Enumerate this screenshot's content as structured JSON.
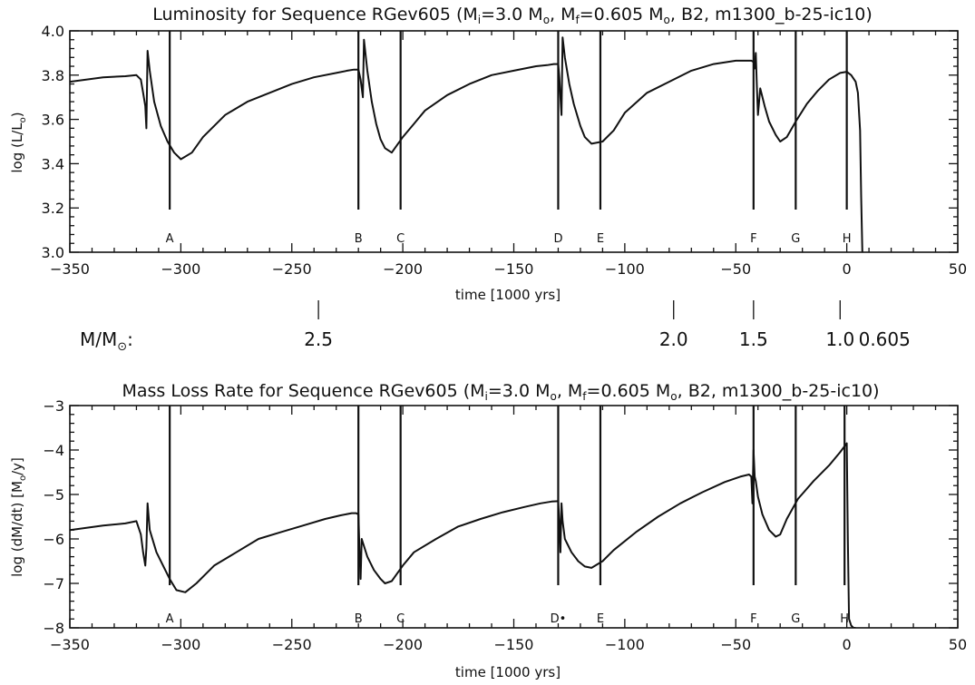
{
  "chart_data": [
    {
      "type": "line",
      "title": "Luminosity for Sequence RGev605 (M_i=3.0 M_o, M_f=0.605 M_o, B2, m1300_b-25-ic10)",
      "xlabel": "time [1000 yrs]",
      "ylabel": "log (L/L_o)",
      "xlim": [
        -350,
        50
      ],
      "ylim": [
        3.0,
        4.0
      ],
      "x_ticks": [
        -350,
        -300,
        -250,
        -200,
        -150,
        -100,
        -50,
        0,
        50
      ],
      "y_ticks": [
        3.0,
        3.2,
        3.4,
        3.6,
        3.8,
        4.0
      ],
      "grid": false,
      "series": [
        {
          "x": [
            -350,
            -335,
            -325,
            -320,
            -318,
            -317,
            -316,
            -315.5,
            -315,
            -314,
            -312,
            -309,
            -306,
            -303,
            -300,
            -295,
            -290,
            -280,
            -270,
            -260,
            -250,
            -240,
            -230,
            -225,
            -222,
            -220,
            -219,
            -218,
            -217.5,
            -216,
            -214,
            -212,
            -210,
            -208,
            -205,
            -200,
            -195,
            -190,
            -180,
            -170,
            -160,
            -150,
            -140,
            -135,
            -132,
            -131,
            -130,
            -129.5,
            -129,
            -128.5,
            -128,
            -127,
            -125,
            -123,
            -120,
            -118,
            -115,
            -110,
            -105,
            -100,
            -90,
            -80,
            -70,
            -60,
            -50,
            -45,
            -43,
            -42,
            -41.5,
            -41,
            -40.5,
            -40,
            -39,
            -37,
            -35,
            -32,
            -30,
            -27,
            -23,
            -18,
            -13,
            -8,
            -3,
            0,
            2,
            4,
            5,
            6,
            6.5,
            7
          ],
          "y": [
            3.77,
            3.79,
            3.795,
            3.8,
            3.78,
            3.72,
            3.66,
            3.56,
            3.91,
            3.82,
            3.68,
            3.57,
            3.5,
            3.45,
            3.42,
            3.45,
            3.52,
            3.62,
            3.68,
            3.72,
            3.76,
            3.79,
            3.81,
            3.82,
            3.825,
            3.825,
            3.78,
            3.7,
            3.96,
            3.82,
            3.68,
            3.58,
            3.51,
            3.47,
            3.45,
            3.52,
            3.58,
            3.64,
            3.71,
            3.76,
            3.8,
            3.82,
            3.84,
            3.845,
            3.85,
            3.85,
            3.85,
            3.79,
            3.7,
            3.62,
            3.97,
            3.88,
            3.76,
            3.67,
            3.57,
            3.52,
            3.49,
            3.5,
            3.55,
            3.63,
            3.72,
            3.77,
            3.82,
            3.85,
            3.865,
            3.865,
            3.865,
            3.86,
            3.83,
            3.9,
            3.75,
            3.62,
            3.74,
            3.66,
            3.59,
            3.53,
            3.5,
            3.52,
            3.59,
            3.67,
            3.73,
            3.78,
            3.81,
            3.815,
            3.8,
            3.77,
            3.72,
            3.55,
            3.25,
            3.0
          ]
        }
      ],
      "event_markers": [
        {
          "label": "A",
          "x": -305
        },
        {
          "label": "B",
          "x": -220
        },
        {
          "label": "C",
          "x": -201
        },
        {
          "label": "D",
          "x": -130
        },
        {
          "label": "E",
          "x": -111
        },
        {
          "label": "F",
          "x": -42
        },
        {
          "label": "G",
          "x": -23
        },
        {
          "label": "H",
          "x": 0
        }
      ]
    },
    {
      "type": "line",
      "title": "Mass Loss Rate for Sequence RGev605 (M_i=3.0 M_o, M_f=0.605 M_o, B2, m1300_b-25-ic10)",
      "xlabel": "time [1000 yrs]",
      "ylabel": "log (dM/dt) [M_o/y]",
      "xlim": [
        -350,
        50
      ],
      "ylim": [
        -8,
        -3
      ],
      "x_ticks": [
        -350,
        -300,
        -250,
        -200,
        -150,
        -100,
        -50,
        0,
        50
      ],
      "y_ticks": [
        -8,
        -7,
        -6,
        -5,
        -4,
        -3
      ],
      "grid": false,
      "series": [
        {
          "x": [
            -350,
            -335,
            -325,
            -320,
            -318,
            -317,
            -316,
            -315.5,
            -315,
            -314,
            -311,
            -308,
            -305,
            -302,
            -298,
            -293,
            -285,
            -275,
            -265,
            -255,
            -245,
            -235,
            -228,
            -223,
            -221,
            -220,
            -219.5,
            -219,
            -218.5,
            -216,
            -213,
            -210,
            -208,
            -205,
            -200,
            -195,
            -185,
            -175,
            -165,
            -155,
            -145,
            -138,
            -133,
            -130,
            -129.5,
            -129,
            -128.5,
            -128,
            -127,
            -124,
            -121,
            -118,
            -115,
            -110,
            -105,
            -95,
            -85,
            -75,
            -65,
            -55,
            -48,
            -44,
            -43,
            -42.5,
            -42,
            -41.5,
            -41,
            -40,
            -38,
            -35,
            -32,
            -30,
            -27,
            -22,
            -15,
            -8,
            -3,
            0,
            0.5,
            1,
            2,
            3,
            4
          ],
          "y": [
            -5.8,
            -5.7,
            -5.65,
            -5.6,
            -5.9,
            -6.3,
            -6.6,
            -6.2,
            -5.2,
            -5.8,
            -6.3,
            -6.6,
            -6.9,
            -7.15,
            -7.2,
            -7.0,
            -6.6,
            -6.3,
            -6.0,
            -5.85,
            -5.7,
            -5.55,
            -5.47,
            -5.42,
            -5.42,
            -5.45,
            -6.3,
            -6.9,
            -6.0,
            -6.4,
            -6.7,
            -6.9,
            -7.0,
            -6.95,
            -6.6,
            -6.3,
            -6.0,
            -5.72,
            -5.55,
            -5.4,
            -5.28,
            -5.2,
            -5.16,
            -5.15,
            -5.6,
            -6.3,
            -5.2,
            -5.6,
            -6.0,
            -6.3,
            -6.5,
            -6.62,
            -6.65,
            -6.5,
            -6.25,
            -5.85,
            -5.5,
            -5.2,
            -4.95,
            -4.72,
            -4.6,
            -4.55,
            -4.6,
            -5.2,
            -4.0,
            -4.6,
            -4.7,
            -5.05,
            -5.45,
            -5.8,
            -5.95,
            -5.9,
            -5.55,
            -5.1,
            -4.7,
            -4.35,
            -4.05,
            -3.85,
            -6.0,
            -7.8,
            -7.95,
            -8.0,
            -8.0
          ]
        }
      ],
      "event_markers": [
        {
          "label": "A",
          "x": -305
        },
        {
          "label": "B",
          "x": -220
        },
        {
          "label": "C",
          "x": -201
        },
        {
          "label": "D•",
          "x": -130
        },
        {
          "label": "E",
          "x": -111
        },
        {
          "label": "F",
          "x": -42
        },
        {
          "label": "G",
          "x": -23
        },
        {
          "label": "H",
          "x": -1
        }
      ]
    }
  ],
  "mass_scale": {
    "label": "M/M_⊙:",
    "marks": [
      {
        "label": "2.5",
        "x": -238
      },
      {
        "label": "2.0",
        "x": -78
      },
      {
        "label": "1.5",
        "x": -42
      },
      {
        "label": "1.0",
        "x": -3
      },
      {
        "label": "0.605",
        "x": 17
      }
    ]
  }
}
